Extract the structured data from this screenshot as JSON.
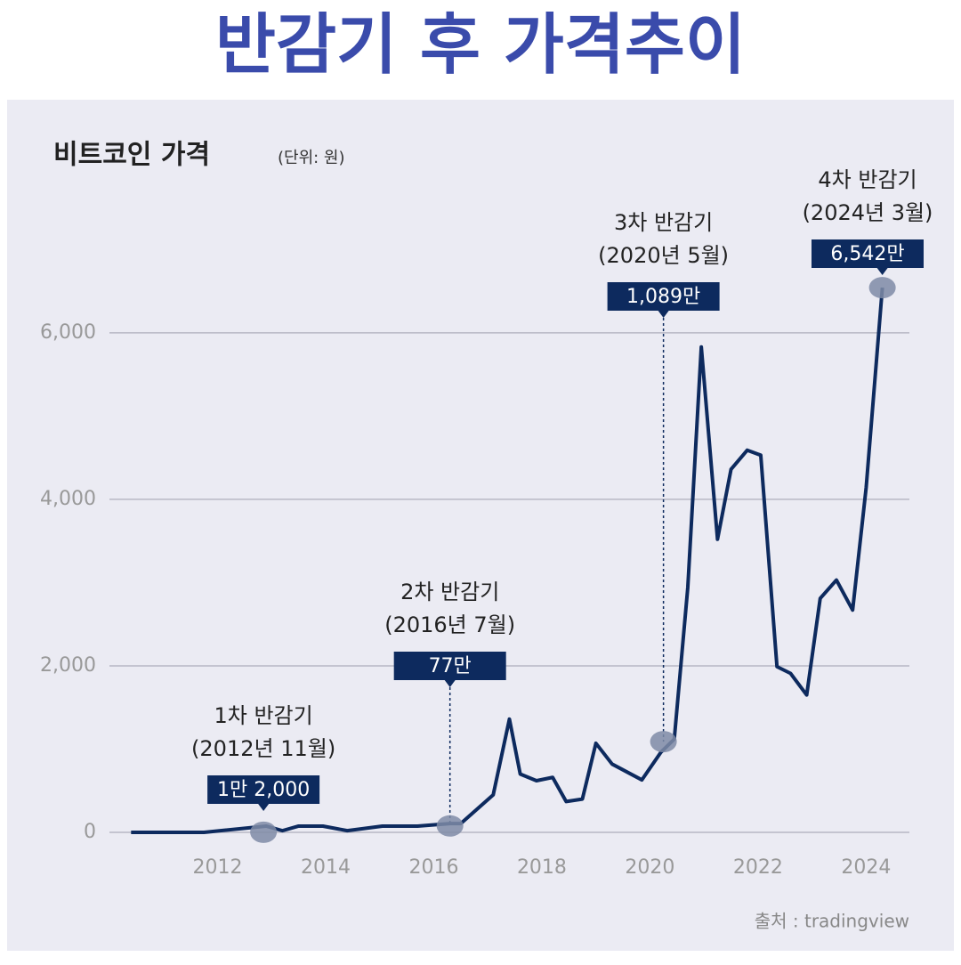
{
  "chart_data": {
    "type": "line",
    "title": "반감기 후 가격추이",
    "subtitle": "비트코인 가격",
    "unit_note": "(단위: 원)",
    "source": "출처 : tradingview",
    "color": "#0d2a5e",
    "x": [
      2010.4,
      2011.75,
      2012.9,
      2013.2,
      2013.5,
      2013.95,
      2014.4,
      2015.05,
      2015.7,
      2016.3,
      2016.5,
      2017.1,
      2017.4,
      2017.6,
      2017.9,
      2018.2,
      2018.45,
      2018.75,
      2019.0,
      2019.3,
      2019.85,
      2020.2,
      2020.45,
      2020.7,
      2020.95,
      2021.25,
      2021.5,
      2021.8,
      2022.05,
      2022.35,
      2022.6,
      2022.9,
      2023.15,
      2023.45,
      2023.75,
      2024.0,
      2024.3
    ],
    "values": [
      0,
      0,
      75,
      20,
      75,
      75,
      20,
      75,
      75,
      105,
      105,
      450,
      1360,
      700,
      620,
      660,
      370,
      400,
      1070,
      820,
      630,
      960,
      1120,
      2940,
      5830,
      3520,
      4360,
      4590,
      4530,
      1990,
      1910,
      1650,
      2810,
      3030,
      2670,
      4140,
      6542
    ],
    "xlim": [
      2010,
      2024.8
    ],
    "ylim": [
      0,
      6800
    ],
    "xticks": [
      2012,
      2014,
      2016,
      2018,
      2020,
      2022,
      2024
    ],
    "yticks": [
      0,
      {
        "value": 2000,
        "label": "2,000"
      },
      {
        "value": 4000,
        "label": "4,000"
      },
      {
        "value": 6000,
        "label": "6,000"
      }
    ],
    "grid": true,
    "annotations": [
      {
        "label": "1차 반감기",
        "date": "(2012년 11월)",
        "x": 2012.85,
        "value": 1.2,
        "value_label": "1만 2,000"
      },
      {
        "label": "2차 반감기",
        "date": "(2016년 7월)",
        "x": 2016.3,
        "value": 77,
        "value_label": "77만"
      },
      {
        "label": "3차 반감기",
        "date": "(2020년 5월)",
        "x": 2020.25,
        "value": 1089,
        "value_label": "1,089만"
      },
      {
        "label": "4차 반감기",
        "date": "(2024년 3월)",
        "x": 2024.3,
        "value": 6542,
        "value_label": "6,542만"
      }
    ]
  }
}
